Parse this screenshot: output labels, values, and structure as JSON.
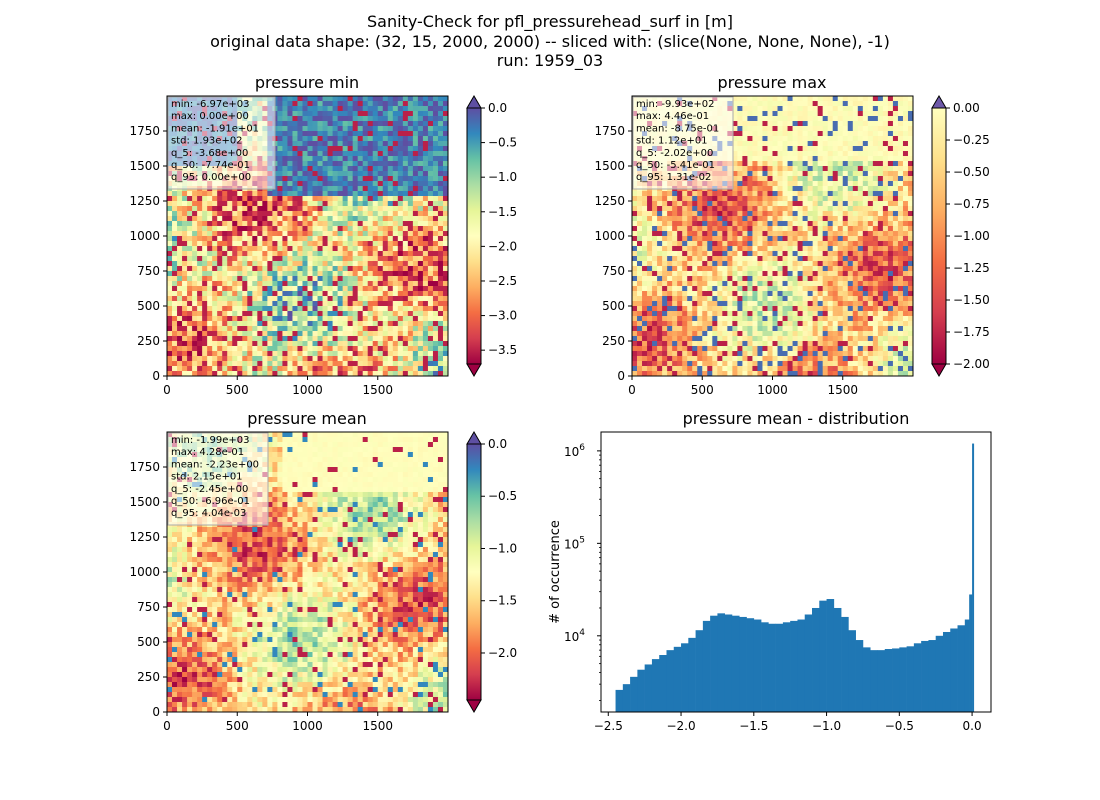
{
  "figure": {
    "title_lines": [
      "Sanity-Check for pfl_pressurehead_surf in [m]",
      "original data shape: (32, 15, 2000, 2000) -- sliced with: (slice(None, None, None), -1)",
      "run: 1959_03"
    ]
  },
  "chart_data": [
    {
      "type": "heatmap",
      "title": "pressure min",
      "colormap": "Spectral",
      "xlim": [
        0,
        2000
      ],
      "ylim": [
        0,
        2000
      ],
      "xticks": [
        "0",
        "500",
        "1000",
        "1500"
      ],
      "yticks": [
        "0",
        "250",
        "500",
        "750",
        "1000",
        "1250",
        "1500",
        "1750"
      ],
      "colorbar": {
        "range": [
          -3.7,
          0.0
        ],
        "ticks": [
          "0.0",
          "−0.5",
          "−1.0",
          "−1.5",
          "−2.0",
          "−2.5",
          "−3.0",
          "−3.5"
        ],
        "extend": "both"
      },
      "stats": [
        "min: -6.97e+03",
        "max: 0.00e+00",
        "mean: -1.91e+01",
        "std: 1.93e+02",
        "q_5: -3.68e+00",
        "q_50: -7.74e-01",
        "q_95: 0.00e+00"
      ]
    },
    {
      "type": "heatmap",
      "title": "pressure max",
      "colormap": "Spectral",
      "xlim": [
        0,
        2000
      ],
      "ylim": [
        0,
        2000
      ],
      "xticks": [
        "0",
        "500",
        "1000",
        "1500"
      ],
      "yticks": [
        "0",
        "250",
        "500",
        "750",
        "1000",
        "1250",
        "1500",
        "1750"
      ],
      "colorbar": {
        "range": [
          -2.0,
          0.0
        ],
        "ticks": [
          "0.00",
          "−0.25",
          "−0.50",
          "−0.75",
          "−1.00",
          "−1.25",
          "−1.50",
          "−1.75",
          "−2.00"
        ],
        "extend": "both"
      },
      "stats": [
        "min: -9.93e+02",
        "max: 4.46e-01",
        "mean: -8.75e-01",
        "std: 1.12e+01",
        "q_5: -2.02e+00",
        "q_50: -5.41e-01",
        "q_95: 1.31e-02"
      ]
    },
    {
      "type": "heatmap",
      "title": "pressure mean",
      "colormap": "Spectral",
      "xlim": [
        0,
        2000
      ],
      "ylim": [
        0,
        2000
      ],
      "xticks": [
        "0",
        "500",
        "1000",
        "1500"
      ],
      "yticks": [
        "0",
        "250",
        "500",
        "750",
        "1000",
        "1250",
        "1500",
        "1750"
      ],
      "colorbar": {
        "range": [
          -2.45,
          0.0
        ],
        "ticks": [
          "0.0",
          "−0.5",
          "−1.0",
          "−1.5",
          "−2.0"
        ],
        "extend": "both"
      },
      "stats": [
        "min: -1.99e+03",
        "max: 4.28e-01",
        "mean: -2.23e+00",
        "std: 2.15e+01",
        "q_5: -2.45e+00",
        "q_50: -6.96e-01",
        "q_95: 4.04e-03"
      ]
    },
    {
      "type": "bar",
      "title": "pressure mean - distribution",
      "ylabel": "# of occurrence",
      "yscale": "log",
      "xlim": [
        -2.55,
        0.13
      ],
      "ylim": [
        1500,
        1600000
      ],
      "xticks": [
        "−2.5",
        "−2.0",
        "−1.5",
        "−1.0",
        "−0.5",
        "0.0"
      ],
      "yticks": [
        {
          "base": "10",
          "exp": "4"
        },
        {
          "base": "10",
          "exp": "5"
        },
        {
          "base": "10",
          "exp": "6"
        }
      ],
      "bar_color": "#1f77b4",
      "bins": {
        "x": [
          -2.45,
          -2.4,
          -2.35,
          -2.3,
          -2.25,
          -2.2,
          -2.15,
          -2.1,
          -2.05,
          -2.0,
          -1.95,
          -1.9,
          -1.85,
          -1.8,
          -1.75,
          -1.7,
          -1.65,
          -1.6,
          -1.55,
          -1.5,
          -1.45,
          -1.4,
          -1.35,
          -1.3,
          -1.25,
          -1.2,
          -1.15,
          -1.1,
          -1.05,
          -1.0,
          -0.95,
          -0.9,
          -0.85,
          -0.8,
          -0.75,
          -0.7,
          -0.65,
          -0.6,
          -0.55,
          -0.5,
          -0.45,
          -0.4,
          -0.35,
          -0.3,
          -0.25,
          -0.2,
          -0.15,
          -0.1,
          -0.05,
          -0.02,
          0.0
        ],
        "y": [
          2600,
          3000,
          3600,
          4300,
          4900,
          5600,
          6200,
          7000,
          7600,
          8300,
          9500,
          11500,
          14500,
          16500,
          17500,
          17000,
          16500,
          16000,
          15500,
          15000,
          14000,
          13500,
          13500,
          14000,
          14500,
          15000,
          17000,
          20000,
          24000,
          25000,
          20000,
          16000,
          11500,
          9000,
          7500,
          7000,
          7000,
          7200,
          7300,
          7500,
          7700,
          8300,
          8800,
          9000,
          10000,
          11000,
          12000,
          13000,
          15000,
          28000,
          1200000
        ]
      }
    }
  ]
}
